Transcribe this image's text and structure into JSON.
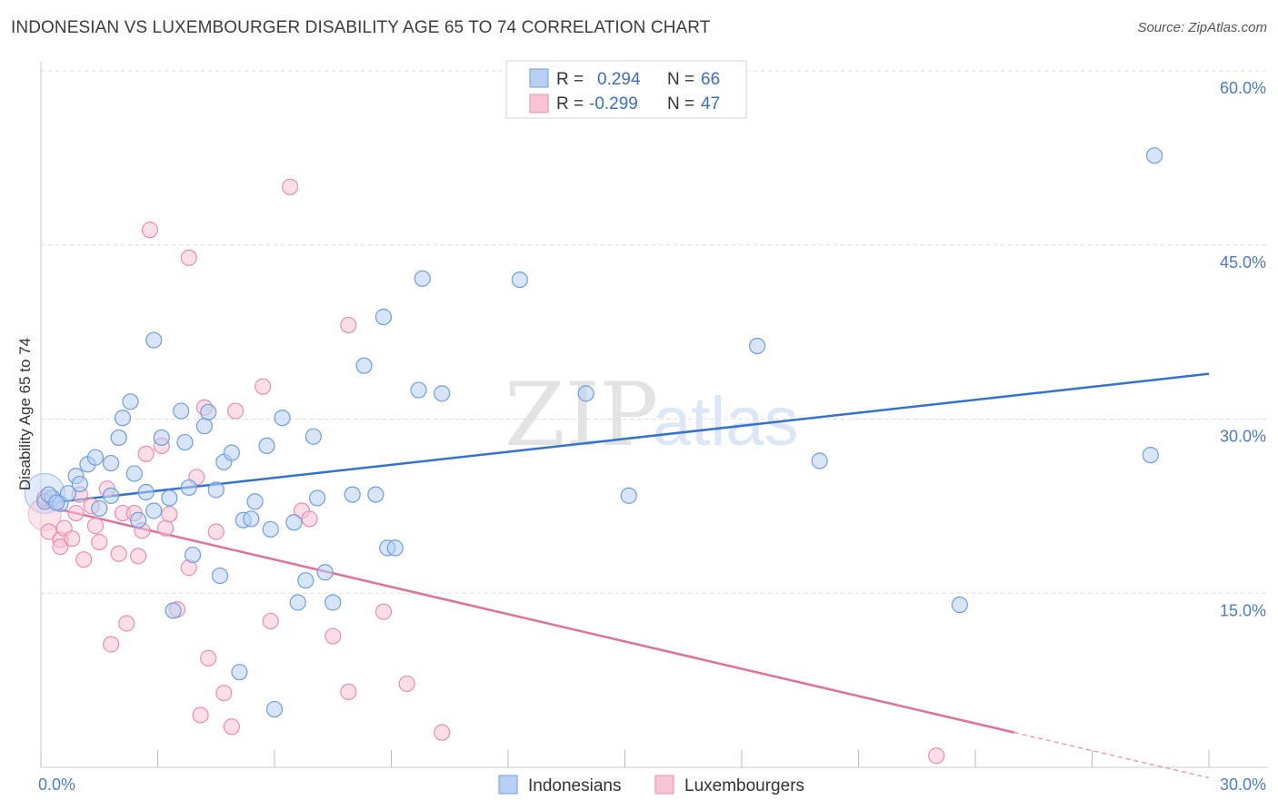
{
  "title": "INDONESIAN VS LUXEMBOURGER DISABILITY AGE 65 TO 74 CORRELATION CHART",
  "source": "Source: ZipAtlas.com",
  "watermark": {
    "zip": "ZIP",
    "atlas": "atlas"
  },
  "colors": {
    "blue_fill": "#b8d0f3",
    "blue_stroke": "#6d9ee0",
    "blue_line": "#3272d0",
    "pink_fill": "#f8c3d4",
    "pink_stroke": "#ea8fab",
    "pink_line": "#e0709a",
    "grid": "#d9d9d9",
    "tick_label": "#4a7cc9"
  },
  "legend": {
    "r_label": "R =",
    "n_label": "N =",
    "rows": [
      {
        "series": "Indonesians",
        "r": "0.294",
        "n": "66"
      },
      {
        "series": "Luxembourgers",
        "r": "-0.299",
        "n": "47"
      }
    ]
  },
  "chart_data": {
    "type": "scatter",
    "title": "INDONESIAN VS LUXEMBOURGER DISABILITY AGE 65 TO 74 CORRELATION CHART",
    "xlabel": "",
    "ylabel": "Disability Age 65 to 74",
    "xlim": [
      0,
      30
    ],
    "ylim": [
      0,
      60
    ],
    "x_tick_labels": [
      "0.0%",
      "30.0%"
    ],
    "y_ticks": [
      15,
      30,
      45,
      60
    ],
    "y_tick_labels": [
      "15.0%",
      "30.0%",
      "45.0%",
      "60.0%"
    ],
    "grid": "horizontal dashed",
    "legend_placement": "top-center",
    "series": [
      {
        "name": "Indonesians",
        "color": "#6d9ee0",
        "trend": {
          "x": [
            0,
            30
          ],
          "y": [
            22.7,
            33.9
          ]
        },
        "points": [
          [
            0.1,
            22.9
          ],
          [
            0.3,
            23.2
          ],
          [
            0.5,
            22.7
          ],
          [
            0.7,
            23.6
          ],
          [
            0.9,
            25.1
          ],
          [
            1.0,
            24.4
          ],
          [
            1.2,
            26.1
          ],
          [
            1.4,
            26.7
          ],
          [
            1.5,
            22.3
          ],
          [
            1.8,
            26.2
          ],
          [
            1.8,
            23.4
          ],
          [
            2.0,
            28.4
          ],
          [
            2.1,
            30.1
          ],
          [
            2.3,
            31.5
          ],
          [
            2.4,
            25.3
          ],
          [
            2.5,
            21.3
          ],
          [
            2.7,
            23.7
          ],
          [
            2.9,
            22.1
          ],
          [
            2.9,
            36.8
          ],
          [
            3.1,
            28.4
          ],
          [
            3.3,
            23.2
          ],
          [
            3.4,
            13.5
          ],
          [
            3.6,
            30.7
          ],
          [
            3.7,
            28.0
          ],
          [
            3.8,
            24.1
          ],
          [
            3.9,
            18.3
          ],
          [
            4.2,
            29.4
          ],
          [
            4.3,
            30.6
          ],
          [
            4.5,
            23.9
          ],
          [
            4.6,
            16.5
          ],
          [
            4.7,
            26.3
          ],
          [
            4.9,
            27.1
          ],
          [
            5.1,
            8.2
          ],
          [
            5.2,
            21.3
          ],
          [
            5.4,
            21.4
          ],
          [
            5.5,
            22.9
          ],
          [
            5.8,
            27.7
          ],
          [
            5.9,
            20.5
          ],
          [
            6.0,
            5.0
          ],
          [
            6.2,
            30.1
          ],
          [
            6.5,
            21.1
          ],
          [
            6.6,
            14.2
          ],
          [
            6.8,
            16.1
          ],
          [
            7.0,
            28.5
          ],
          [
            7.1,
            23.2
          ],
          [
            7.3,
            16.8
          ],
          [
            7.5,
            14.2
          ],
          [
            8.0,
            23.5
          ],
          [
            8.3,
            34.6
          ],
          [
            8.6,
            23.5
          ],
          [
            8.8,
            38.8
          ],
          [
            8.9,
            18.9
          ],
          [
            9.1,
            18.9
          ],
          [
            9.7,
            32.5
          ],
          [
            9.8,
            42.1
          ],
          [
            10.3,
            32.2
          ],
          [
            12.3,
            42.0
          ],
          [
            14.0,
            32.2
          ],
          [
            15.1,
            23.4
          ],
          [
            18.4,
            36.3
          ],
          [
            20.0,
            26.4
          ],
          [
            23.6,
            14.0
          ],
          [
            28.5,
            26.9
          ],
          [
            28.6,
            52.7
          ],
          [
            0.2,
            23.5
          ],
          [
            0.4,
            22.8
          ]
        ]
      },
      {
        "name": "Luxembourgers",
        "color": "#ea8fab",
        "trend": {
          "x": [
            0,
            25.0
          ],
          "y": [
            22.6,
            3.0
          ]
        },
        "trend_dashed": {
          "x": [
            25.0,
            30
          ],
          "y": [
            3.0,
            -0.9
          ]
        },
        "points": [
          [
            0.1,
            23.2
          ],
          [
            0.2,
            20.3
          ],
          [
            0.5,
            19.6
          ],
          [
            0.5,
            19.0
          ],
          [
            0.6,
            20.6
          ],
          [
            0.8,
            19.7
          ],
          [
            0.9,
            21.9
          ],
          [
            1.0,
            23.5
          ],
          [
            1.1,
            17.9
          ],
          [
            1.3,
            22.5
          ],
          [
            1.4,
            20.8
          ],
          [
            1.5,
            19.4
          ],
          [
            1.7,
            24.0
          ],
          [
            1.8,
            10.6
          ],
          [
            2.0,
            18.4
          ],
          [
            2.1,
            21.9
          ],
          [
            2.2,
            12.4
          ],
          [
            2.4,
            21.9
          ],
          [
            2.5,
            18.2
          ],
          [
            2.6,
            20.4
          ],
          [
            2.7,
            27.0
          ],
          [
            2.8,
            46.3
          ],
          [
            3.1,
            27.7
          ],
          [
            3.2,
            20.6
          ],
          [
            3.3,
            21.8
          ],
          [
            3.5,
            13.6
          ],
          [
            3.8,
            17.2
          ],
          [
            3.8,
            43.9
          ],
          [
            4.0,
            25.0
          ],
          [
            4.1,
            4.5
          ],
          [
            4.2,
            31.0
          ],
          [
            4.3,
            9.4
          ],
          [
            4.5,
            20.3
          ],
          [
            4.7,
            6.4
          ],
          [
            4.9,
            3.5
          ],
          [
            5.0,
            30.7
          ],
          [
            5.7,
            32.8
          ],
          [
            5.9,
            12.6
          ],
          [
            6.4,
            50.0
          ],
          [
            6.7,
            22.1
          ],
          [
            6.9,
            21.4
          ],
          [
            7.5,
            11.3
          ],
          [
            7.9,
            38.1
          ],
          [
            7.9,
            6.5
          ],
          [
            8.8,
            13.4
          ],
          [
            9.4,
            7.2
          ],
          [
            10.3,
            3.0
          ]
        ],
        "extra_points": [
          [
            23.0,
            1.0
          ]
        ]
      }
    ]
  },
  "bottom_legend": [
    {
      "label": "Indonesians"
    },
    {
      "label": "Luxembourgers"
    }
  ]
}
